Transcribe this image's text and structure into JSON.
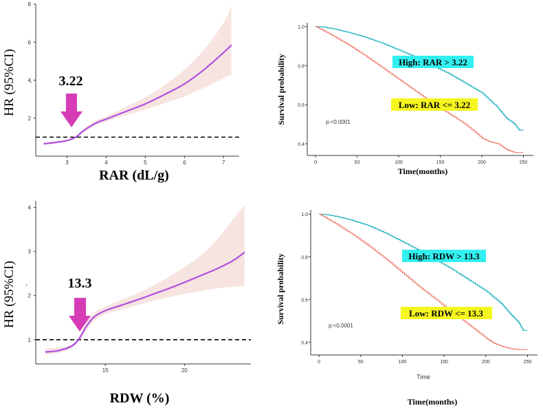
{
  "chart_data": [
    {
      "id": "rcs_rar",
      "type": "line",
      "title": "",
      "xlabel": "RAR (dL/g)",
      "ylabel": "HR (95%CI)",
      "xlim": [
        2.2,
        7.4
      ],
      "ylim": [
        0,
        8
      ],
      "xticks": [
        "3",
        "4",
        "5",
        "6",
        "7"
      ],
      "yticks": [
        "2",
        "4",
        "6",
        "8"
      ],
      "reference_line": 1,
      "threshold_label": "3.22",
      "threshold_value": 3.22,
      "colors": {
        "line": "#b04ee0",
        "band": "#f7e4e0",
        "arrow": "#d63cb6"
      },
      "series": [
        {
          "name": "HR",
          "x": [
            2.4,
            2.7,
            3.0,
            3.22,
            3.4,
            3.6,
            3.8,
            4.0,
            4.5,
            5.0,
            5.5,
            6.0,
            6.5,
            7.0,
            7.2
          ],
          "values": [
            0.65,
            0.72,
            0.82,
            1.0,
            1.3,
            1.58,
            1.8,
            1.95,
            2.35,
            2.75,
            3.25,
            3.8,
            4.55,
            5.45,
            5.85
          ]
        },
        {
          "name": "Lower 95%CI",
          "x": [
            2.4,
            2.7,
            3.0,
            3.22,
            3.4,
            3.6,
            3.8,
            4.0,
            4.5,
            5.0,
            5.5,
            6.0,
            6.5,
            7.0,
            7.2
          ],
          "values": [
            0.6,
            0.68,
            0.78,
            0.95,
            1.22,
            1.48,
            1.68,
            1.83,
            2.15,
            2.45,
            2.8,
            3.15,
            3.6,
            4.1,
            4.3
          ]
        },
        {
          "name": "Upper 95%CI",
          "x": [
            2.4,
            2.7,
            3.0,
            3.22,
            3.4,
            3.6,
            3.8,
            4.0,
            4.5,
            5.0,
            5.5,
            6.0,
            6.5,
            7.0,
            7.2
          ],
          "values": [
            0.72,
            0.78,
            0.88,
            1.05,
            1.4,
            1.7,
            1.95,
            2.1,
            2.6,
            3.1,
            3.75,
            4.55,
            5.6,
            7.0,
            7.9
          ]
        }
      ]
    },
    {
      "id": "km_rar",
      "type": "line",
      "title": "",
      "xlabel": "Time(months)",
      "ylabel": "Survival probability",
      "xlim": [
        -10,
        262
      ],
      "ylim": [
        0.34,
        1.02
      ],
      "xticks": [
        "0",
        "50",
        "100",
        "150",
        "200",
        "250"
      ],
      "yticks": [
        "0.4",
        "0.6",
        "0.8",
        "1.0"
      ],
      "pvalue": "p:<0.0001",
      "legend": {
        "high": "High: RAR > 3.22",
        "low": "Low: RAR <= 3.22"
      },
      "colors": {
        "high": "#1fb4bd",
        "low": "#ef7a6a",
        "high_box": "#33f0f0",
        "low_box": "#f5f51f"
      },
      "series": [
        {
          "name": "High: RAR > 3.22",
          "x": [
            0,
            10,
            20,
            40,
            60,
            80,
            100,
            120,
            140,
            160,
            180,
            200,
            220,
            230,
            240,
            245,
            250
          ],
          "values": [
            1.0,
            0.998,
            0.99,
            0.97,
            0.945,
            0.915,
            0.88,
            0.845,
            0.8,
            0.76,
            0.71,
            0.66,
            0.58,
            0.53,
            0.5,
            0.47,
            0.47
          ]
        },
        {
          "name": "Low: RAR <= 3.22",
          "x": [
            0,
            20,
            40,
            60,
            80,
            100,
            120,
            140,
            160,
            180,
            200,
            210,
            220,
            230,
            240,
            250
          ],
          "values": [
            1.0,
            0.955,
            0.905,
            0.85,
            0.79,
            0.73,
            0.67,
            0.61,
            0.555,
            0.5,
            0.43,
            0.41,
            0.4,
            0.37,
            0.355,
            0.355
          ]
        }
      ]
    },
    {
      "id": "rcs_rdw",
      "type": "line",
      "title": "",
      "xlabel": "RDW (%)",
      "ylabel": "HR (95%CI)",
      "xlim": [
        10.6,
        24.2
      ],
      "ylim": [
        0.45,
        4.15
      ],
      "xticks": [
        "15",
        "20"
      ],
      "yticks": [
        "1",
        "2",
        "3",
        "4"
      ],
      "reference_line": 1,
      "threshold_label": "13.3",
      "threshold_value": 13.3,
      "colors": {
        "line": "#b04ee0",
        "band": "#f7e4e0",
        "arrow": "#d63cb6"
      },
      "series": [
        {
          "name": "HR",
          "x": [
            11.2,
            12.0,
            12.8,
            13.3,
            13.8,
            14.3,
            15.0,
            16.0,
            17.0,
            18.0,
            19.0,
            20.0,
            21.0,
            22.0,
            23.0,
            23.8
          ],
          "values": [
            0.72,
            0.75,
            0.84,
            1.0,
            1.3,
            1.52,
            1.66,
            1.78,
            1.9,
            2.03,
            2.16,
            2.3,
            2.45,
            2.6,
            2.78,
            2.98
          ]
        },
        {
          "name": "Lower 95%CI",
          "x": [
            11.2,
            12.0,
            12.8,
            13.3,
            13.8,
            14.3,
            15.0,
            16.0,
            17.0,
            18.0,
            19.0,
            20.0,
            21.0,
            22.0,
            23.0,
            23.8
          ],
          "values": [
            0.66,
            0.7,
            0.8,
            0.96,
            1.22,
            1.43,
            1.58,
            1.68,
            1.78,
            1.88,
            1.96,
            2.04,
            2.1,
            2.16,
            2.2,
            2.22
          ]
        },
        {
          "name": "Upper 95%CI",
          "x": [
            11.2,
            12.0,
            12.8,
            13.3,
            13.8,
            14.3,
            15.0,
            16.0,
            17.0,
            18.0,
            19.0,
            20.0,
            21.0,
            22.0,
            23.0,
            23.8
          ],
          "values": [
            0.8,
            0.82,
            0.88,
            1.04,
            1.4,
            1.62,
            1.75,
            1.9,
            2.05,
            2.22,
            2.42,
            2.65,
            2.9,
            3.25,
            3.7,
            4.05
          ]
        }
      ]
    },
    {
      "id": "km_rdw",
      "type": "line",
      "title": "",
      "xlabel": "Time(months)",
      "axis_caption": "Time",
      "ylabel": "Survival probability",
      "xlim": [
        -10,
        262
      ],
      "ylim": [
        0.34,
        1.02
      ],
      "xticks": [
        "0",
        "50",
        "100",
        "150",
        "200",
        "250"
      ],
      "yticks": [
        "0.4",
        "0.6",
        "0.8",
        "1.0"
      ],
      "pvalue": "p:<0.0001",
      "legend": {
        "high": "High: RDW > 13.3",
        "low": "Low: RDW <=  13.3"
      },
      "colors": {
        "high": "#1fb4bd",
        "low": "#ef7a6a",
        "high_box": "#33f0f0",
        "low_box": "#f5f51f"
      },
      "series": [
        {
          "name": "High: RDW > 13.3",
          "x": [
            0,
            10,
            20,
            40,
            60,
            80,
            100,
            120,
            140,
            160,
            180,
            200,
            220,
            230,
            240,
            245,
            250
          ],
          "values": [
            1.0,
            0.997,
            0.99,
            0.97,
            0.945,
            0.91,
            0.87,
            0.83,
            0.785,
            0.74,
            0.69,
            0.64,
            0.575,
            0.53,
            0.49,
            0.455,
            0.455
          ]
        },
        {
          "name": "Low: RDW <=  13.3",
          "x": [
            0,
            20,
            40,
            60,
            80,
            100,
            120,
            140,
            160,
            180,
            200,
            210,
            220,
            230,
            240,
            250
          ],
          "values": [
            1.0,
            0.955,
            0.905,
            0.85,
            0.79,
            0.725,
            0.66,
            0.6,
            0.54,
            0.48,
            0.42,
            0.395,
            0.38,
            0.37,
            0.365,
            0.365
          ]
        }
      ]
    }
  ]
}
